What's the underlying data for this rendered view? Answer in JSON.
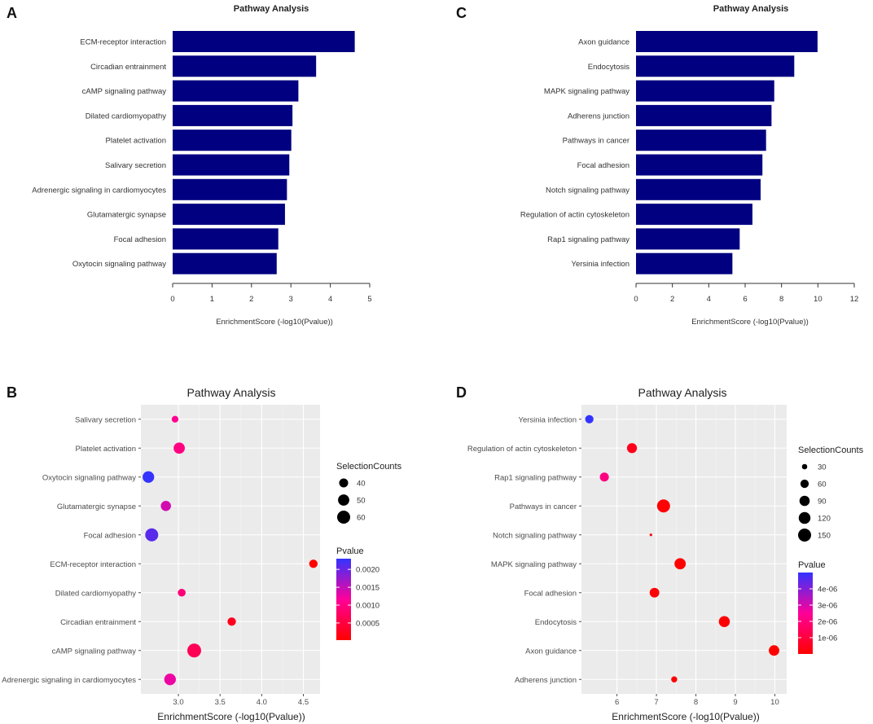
{
  "chart_data": [
    {
      "panel": "A",
      "type": "bar",
      "orientation": "horizontal",
      "title": "Pathway Analysis",
      "xlabel": "EnrichmentScore (-log10(Pvalue))",
      "xlim": [
        0,
        5
      ],
      "xticks": [
        0,
        1,
        2,
        3,
        4,
        5
      ],
      "bar_color": "#000080",
      "categories": [
        "ECM-receptor interaction",
        "Circadian entrainment",
        "cAMP signaling pathway",
        "Dilated cardiomyopathy",
        "Platelet activation",
        "Salivary secretion",
        "Adrenergic signaling in cardiomyocytes",
        "Glutamatergic synapse",
        "Focal adhesion",
        "Oxytocin signaling pathway"
      ],
      "values": [
        4.62,
        3.64,
        3.19,
        3.04,
        3.01,
        2.96,
        2.9,
        2.85,
        2.68,
        2.64
      ]
    },
    {
      "panel": "C",
      "type": "bar",
      "orientation": "horizontal",
      "title": "Pathway Analysis",
      "xlabel": "EnrichmentScore (-log10(Pvalue))",
      "xlim": [
        0,
        12
      ],
      "xticks": [
        0,
        2,
        4,
        6,
        8,
        10,
        12
      ],
      "bar_color": "#000080",
      "categories": [
        "Axon guidance",
        "Endocytosis",
        "MAPK signaling pathway",
        "Adherens junction",
        "Pathways in cancer",
        "Focal adhesion",
        "Notch signaling pathway",
        "Regulation of actin cytoskeleton",
        "Rap1 signaling pathway",
        "Yersinia infection"
      ],
      "values": [
        9.98,
        8.7,
        7.6,
        7.45,
        7.15,
        6.95,
        6.85,
        6.4,
        5.7,
        5.3
      ]
    },
    {
      "panel": "B",
      "type": "scatter",
      "title": "Pathway Analysis",
      "xlabel": "EnrichmentScore (-log10(Pvalue))",
      "xlim": [
        2.55,
        4.7
      ],
      "xticks": [
        3.0,
        3.5,
        4.0,
        4.5
      ],
      "xtick_labels": [
        "3.0",
        "3.5",
        "4.0",
        "4.5"
      ],
      "categories": [
        "Salivary secretion",
        "Platelet activation",
        "Oxytocin signaling pathway",
        "Glutamatergic synapse",
        "Focal adhesion",
        "ECM-receptor interaction",
        "Dilated cardiomyopathy",
        "Circadian entrainment",
        "cAMP signaling pathway",
        "Adrenergic signaling in cardiomyocytes"
      ],
      "x": [
        2.96,
        3.01,
        2.64,
        2.85,
        2.68,
        4.62,
        3.04,
        3.64,
        3.19,
        2.9
      ],
      "size_values": [
        33,
        50,
        52,
        45,
        60,
        38,
        36,
        38,
        66,
        52
      ],
      "pvalues": [
        0.0011,
        0.00098,
        0.00229,
        0.00141,
        0.00209,
        2.4e-05,
        0.00091,
        0.00023,
        0.00065,
        0.00126
      ],
      "size_legend": {
        "title": "SelectionCounts",
        "values": [
          40,
          50,
          60
        ],
        "labels": [
          "40",
          "50",
          "60"
        ]
      },
      "color_legend": {
        "title": "Pvalue",
        "range": [
          2e-05,
          0.0023
        ],
        "ticks": [
          0.002,
          0.0015,
          0.001,
          0.0005
        ],
        "labels": [
          "0.0020",
          "0.0015",
          "0.0010",
          "0.0005"
        ],
        "low_color": "#ff0000",
        "mid_color": "#ff0099",
        "high_color": "#3333ff"
      }
    },
    {
      "panel": "D",
      "type": "scatter",
      "title": "Pathway Analysis",
      "xlabel": "EnrichmentScore (-log10(Pvalue))",
      "xlim": [
        5.1,
        10.3
      ],
      "xticks": [
        6,
        7,
        8,
        9,
        10
      ],
      "xtick_labels": [
        "6",
        "7",
        "8",
        "9",
        "10"
      ],
      "categories": [
        "Yersinia infection",
        "Regulation of actin cytoskeleton",
        "Rap1 signaling pathway",
        "Pathways in cancer",
        "Notch signaling pathway",
        "MAPK signaling pathway",
        "Focal adhesion",
        "Endocytosis",
        "Axon guidance",
        "Adherens junction"
      ],
      "x": [
        5.3,
        6.38,
        5.68,
        7.18,
        6.86,
        7.6,
        6.95,
        8.72,
        9.98,
        7.45
      ],
      "size_values": [
        60,
        85,
        70,
        150,
        20,
        110,
        80,
        105,
        95,
        35
      ],
      "pvalues": [
        5e-06,
        4.2e-07,
        2.1e-06,
        7.1e-08,
        1.4e-07,
        2.5e-08,
        1.1e-07,
        1.9e-09,
        1e-10,
        3.5e-08
      ],
      "size_legend": {
        "title": "SelectionCounts",
        "values": [
          30,
          60,
          90,
          120,
          150
        ],
        "labels": [
          "30",
          "60",
          "90",
          "120",
          "150"
        ]
      },
      "color_legend": {
        "title": "Pvalue",
        "range": [
          0,
          5e-06
        ],
        "ticks": [
          4e-06,
          3e-06,
          2e-06,
          1e-06
        ],
        "labels": [
          "4e-06",
          "3e-06",
          "2e-06",
          "1e-06"
        ],
        "low_color": "#ff0000",
        "mid_color": "#ff0099",
        "high_color": "#3333ff"
      }
    }
  ]
}
